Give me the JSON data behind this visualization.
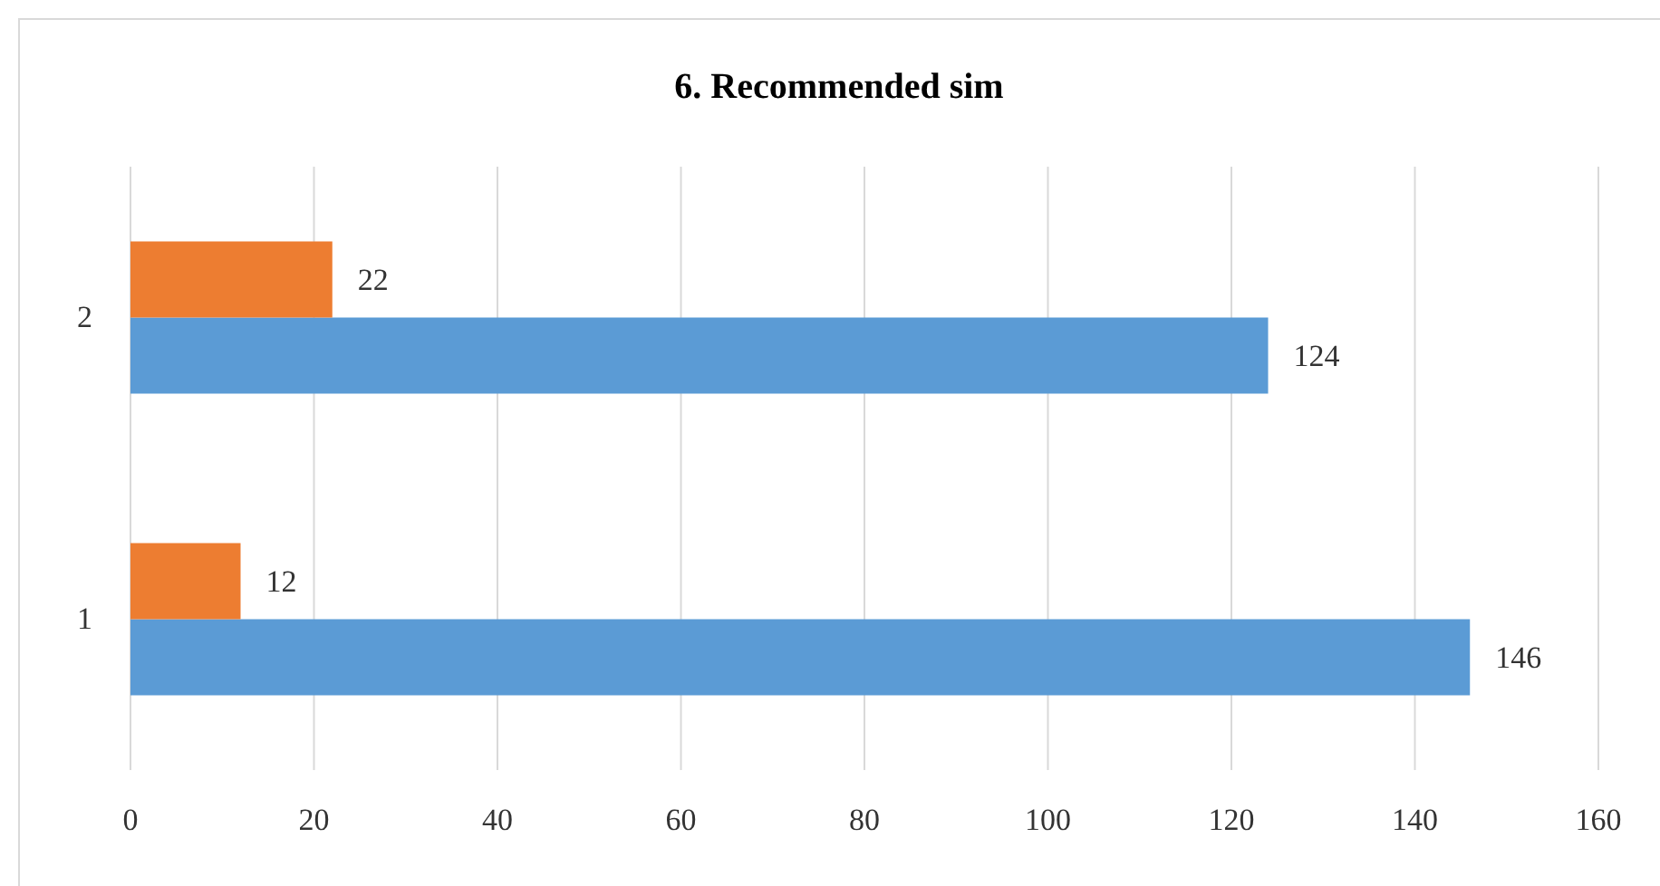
{
  "chart_data": {
    "type": "bar",
    "orientation": "horizontal",
    "title": "6. Recommended sim",
    "categories": [
      "2",
      "1"
    ],
    "series": [
      {
        "color": "#5b9bd5",
        "values": [
          124,
          146
        ]
      },
      {
        "color": "#ed7d31",
        "values": [
          22,
          12
        ]
      }
    ],
    "xlim": [
      0,
      160
    ],
    "xticks": [
      0,
      20,
      40,
      60,
      80,
      100,
      120,
      140,
      160
    ],
    "grid": "x",
    "data_labels": true
  }
}
